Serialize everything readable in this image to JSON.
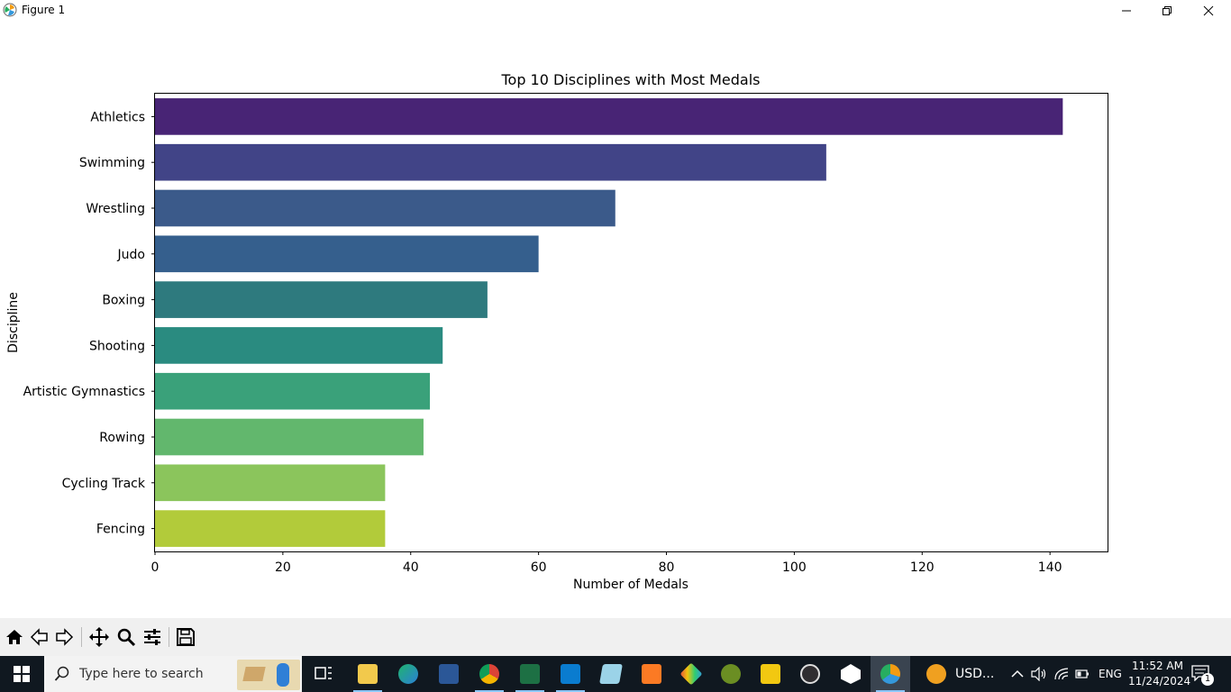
{
  "window": {
    "title": "Figure 1"
  },
  "chart_data": {
    "type": "bar",
    "orientation": "horizontal",
    "title": "Top 10 Disciplines with Most Medals",
    "xlabel": "Number of Medals",
    "ylabel": "Discipline",
    "categories": [
      "Athletics",
      "Swimming",
      "Wrestling",
      "Judo",
      "Boxing",
      "Shooting",
      "Artistic Gymnastics",
      "Rowing",
      "Cycling Track",
      "Fencing"
    ],
    "values": [
      142,
      105,
      72,
      60,
      52,
      45,
      43,
      42,
      36,
      36
    ],
    "colors": [
      "#482475",
      "#414487",
      "#3b5a8a",
      "#355f8d",
      "#2e7a7e",
      "#2a8b80",
      "#3aa17a",
      "#62b76d",
      "#8bc55c",
      "#b2cb3a"
    ],
    "xlim": [
      0,
      149
    ],
    "xticks": [
      0,
      20,
      40,
      60,
      80,
      100,
      120,
      140
    ],
    "grid": false,
    "palette": "viridis"
  },
  "toolbar": {
    "buttons": [
      "home-icon",
      "back-icon",
      "forward-icon",
      "pan-icon",
      "zoom-icon",
      "configure-icon",
      "save-icon"
    ]
  },
  "taskbar": {
    "search_placeholder": "Type here to search",
    "tray_app_label": "USD...",
    "language": "ENG",
    "time": "11:52 AM",
    "date": "11/24/2024",
    "notification_count": "1"
  }
}
